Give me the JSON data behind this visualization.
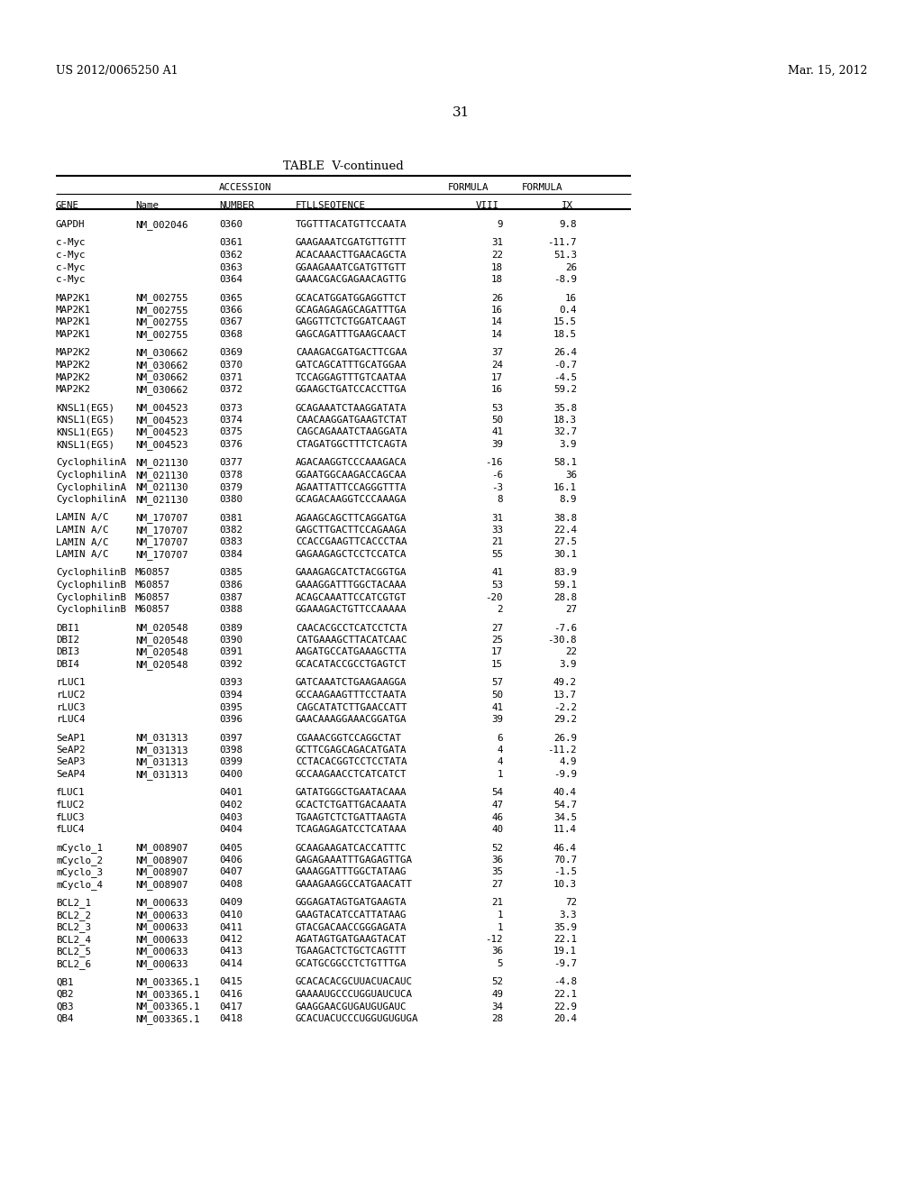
{
  "header_left": "US 2012/0065250 A1",
  "header_right": "Mar. 15, 2012",
  "page_number": "31",
  "table_title": "TABLE  V-continued",
  "rows": [
    [
      "GAPDH",
      "NM_002046",
      "0360",
      "TGGTTTACATGTTCCAATA",
      "9",
      "9.8"
    ],
    [
      "",
      "",
      "",
      "",
      "",
      ""
    ],
    [
      "c-Myc",
      "",
      "0361",
      "GAAGAAATCGATGTTGTTT",
      "31",
      "-11.7"
    ],
    [
      "c-Myc",
      "",
      "0362",
      "ACACAAACTTGAACAGCTA",
      "22",
      "51.3"
    ],
    [
      "c-Myc",
      "",
      "0363",
      "GGAAGAAATCGATGTTGTT",
      "18",
      "26"
    ],
    [
      "c-Myc",
      "",
      "0364",
      "GAAACGACGAGAACAGTTG",
      "18",
      "-8.9"
    ],
    [
      "",
      "",
      "",
      "",
      "",
      ""
    ],
    [
      "MAP2K1",
      "NM_002755",
      "0365",
      "GCACATGGATGGAGGTTCT",
      "26",
      "16"
    ],
    [
      "MAP2K1",
      "NM_002755",
      "0366",
      "GCAGAGAGAGCAGATTTGA",
      "16",
      "0.4"
    ],
    [
      "MAP2K1",
      "NM_002755",
      "0367",
      "GAGGTTCTCTGGATCAAGT",
      "14",
      "15.5"
    ],
    [
      "MAP2K1",
      "NM_002755",
      "0368",
      "GAGCAGATTTGAAGCAACT",
      "14",
      "18.5"
    ],
    [
      "",
      "",
      "",
      "",
      "",
      ""
    ],
    [
      "MAP2K2",
      "NM_030662",
      "0369",
      "CAAAGACGATGACTTCGAA",
      "37",
      "26.4"
    ],
    [
      "MAP2K2",
      "NM_030662",
      "0370",
      "GATCAGCATTTGCATGGAA",
      "24",
      "-0.7"
    ],
    [
      "MAP2K2",
      "NM_030662",
      "0371",
      "TCCAGGAGTTTGTCAATAA",
      "17",
      "-4.5"
    ],
    [
      "MAP2K2",
      "NM_030662",
      "0372",
      "GGAAGCTGATCCACCTTGA",
      "16",
      "59.2"
    ],
    [
      "",
      "",
      "",
      "",
      "",
      ""
    ],
    [
      "KNSL1(EG5)",
      "NM_004523",
      "0373",
      "GCAGAAATCTAAGGATATA",
      "53",
      "35.8"
    ],
    [
      "KNSL1(EG5)",
      "NM_004523",
      "0374",
      "CAACAAGGATGAAGTCTAT",
      "50",
      "18.3"
    ],
    [
      "KNSL1(EG5)",
      "NM_004523",
      "0375",
      "CAGCAGAAATCTAAGGATA",
      "41",
      "32.7"
    ],
    [
      "KNSL1(EG5)",
      "NM_004523",
      "0376",
      "CTAGATGGCTTTCTCAGTA",
      "39",
      "3.9"
    ],
    [
      "",
      "",
      "",
      "",
      "",
      ""
    ],
    [
      "CyclophilinA",
      "NM_021130",
      "0377",
      "AGACAAGGTCCCAAAGACA",
      "-16",
      "58.1"
    ],
    [
      "CyclophilinA",
      "NM_021130",
      "0378",
      "GGAATGGCAAGACCAGCAA",
      "-6",
      "36"
    ],
    [
      "CyclophilinA",
      "NM_021130",
      "0379",
      "AGAATTATTCCAGGGTTTA",
      "-3",
      "16.1"
    ],
    [
      "CyclophilinA",
      "NM_021130",
      "0380",
      "GCAGACAAGGTCCCAAAGA",
      "8",
      "8.9"
    ],
    [
      "",
      "",
      "",
      "",
      "",
      ""
    ],
    [
      "LAMIN A/C",
      "NM_170707",
      "0381",
      "AGAAGCAGCTTCAGGATGA",
      "31",
      "38.8"
    ],
    [
      "LAMIN A/C",
      "NM_170707",
      "0382",
      "GAGCTTGACTTCCAGAAGA",
      "33",
      "22.4"
    ],
    [
      "LAMIN A/C",
      "NM_170707",
      "0383",
      "CCACCGAAGTTCACCCTAA",
      "21",
      "27.5"
    ],
    [
      "LAMIN A/C",
      "NM_170707",
      "0384",
      "GAGAAGAGCTCCTCCATCA",
      "55",
      "30.1"
    ],
    [
      "",
      "",
      "",
      "",
      "",
      ""
    ],
    [
      "CyclophilinB",
      "M60857",
      "0385",
      "GAAAGAGCATCTACGGTGA",
      "41",
      "83.9"
    ],
    [
      "CyclophilinB",
      "M60857",
      "0386",
      "GAAAGGATTTGGCTACAAA",
      "53",
      "59.1"
    ],
    [
      "CyclophilinB",
      "M60857",
      "0387",
      "ACAGCAAATTCCATCGTGT",
      "-20",
      "28.8"
    ],
    [
      "CyclophilinB",
      "M60857",
      "0388",
      "GGAAAGACTGTTCCAAAAA",
      "2",
      "27"
    ],
    [
      "",
      "",
      "",
      "",
      "",
      ""
    ],
    [
      "DBI1",
      "NM_020548",
      "0389",
      "CAACACGCCTCATCCTCTA",
      "27",
      "-7.6"
    ],
    [
      "DBI2",
      "NM_020548",
      "0390",
      "CATGAAAGCTTACATCAAC",
      "25",
      "-30.8"
    ],
    [
      "DBI3",
      "NM_020548",
      "0391",
      "AAGATGCCATGAAAGCTTA",
      "17",
      "22"
    ],
    [
      "DBI4",
      "NM_020548",
      "0392",
      "GCACATACCGCCTGAGTCT",
      "15",
      "3.9"
    ],
    [
      "",
      "",
      "",
      "",
      "",
      ""
    ],
    [
      "rLUC1",
      "",
      "0393",
      "GATCAAATCTGAAGAAGGA",
      "57",
      "49.2"
    ],
    [
      "rLUC2",
      "",
      "0394",
      "GCCAAGAAGTTTCCTAATA",
      "50",
      "13.7"
    ],
    [
      "rLUC3",
      "",
      "0395",
      "CAGCATATCTTGAACCATT",
      "41",
      "-2.2"
    ],
    [
      "rLUC4",
      "",
      "0396",
      "GAACAAAGGAAACGGATGA",
      "39",
      "29.2"
    ],
    [
      "",
      "",
      "",
      "",
      "",
      ""
    ],
    [
      "SeAP1",
      "NM_031313",
      "0397",
      "CGAAACGGTCCAGGCTAT",
      "6",
      "26.9"
    ],
    [
      "SeAP2",
      "NM_031313",
      "0398",
      "GCTTCGAGCAGACATGATA",
      "4",
      "-11.2"
    ],
    [
      "SeAP3",
      "NM_031313",
      "0399",
      "CCTACACGGTCCTCCTATA",
      "4",
      "4.9"
    ],
    [
      "SeAP4",
      "NM_031313",
      "0400",
      "GCCAAGAACCTCATCATCT",
      "1",
      "-9.9"
    ],
    [
      "",
      "",
      "",
      "",
      "",
      ""
    ],
    [
      "fLUC1",
      "",
      "0401",
      "GATATGGGCTGAATACAAA",
      "54",
      "40.4"
    ],
    [
      "fLUC2",
      "",
      "0402",
      "GCACTCTGATTGACAAATA",
      "47",
      "54.7"
    ],
    [
      "fLUC3",
      "",
      "0403",
      "TGAAGTCTCTGATTAAGTA",
      "46",
      "34.5"
    ],
    [
      "fLUC4",
      "",
      "0404",
      "TCAGAGAGATCCTCATAAA",
      "40",
      "11.4"
    ],
    [
      "",
      "",
      "",
      "",
      "",
      ""
    ],
    [
      "mCyclo_1",
      "NM_008907",
      "0405",
      "GCAAGAAGATCACCATTTC",
      "52",
      "46.4"
    ],
    [
      "mCyclo_2",
      "NM_008907",
      "0406",
      "GAGAGAAATTTGAGAGTTGA",
      "36",
      "70.7"
    ],
    [
      "mCyclo_3",
      "NM_008907",
      "0407",
      "GAAAGGATTTGGCTATAAG",
      "35",
      "-1.5"
    ],
    [
      "mCyclo_4",
      "NM_008907",
      "0408",
      "GAAAGAAGGCCATGAACATT",
      "27",
      "10.3"
    ],
    [
      "",
      "",
      "",
      "",
      "",
      ""
    ],
    [
      "BCL2_1",
      "NM_000633",
      "0409",
      "GGGAGATAGTGATGAAGTA",
      "21",
      "72"
    ],
    [
      "BCL2_2",
      "NM_000633",
      "0410",
      "GAAGTACATCCATTATAAG",
      "1",
      "3.3"
    ],
    [
      "BCL2_3",
      "NM_000633",
      "0411",
      "GTACGACAACCGGGAGATA",
      "1",
      "35.9"
    ],
    [
      "BCL2_4",
      "NM_000633",
      "0412",
      "AGATAGTGATGAAGTACAT",
      "-12",
      "22.1"
    ],
    [
      "BCL2_5",
      "NM_000633",
      "0413",
      "TGAAGACTCTGCTCAGTTT",
      "36",
      "19.1"
    ],
    [
      "BCL2_6",
      "NM_000633",
      "0414",
      "GCATGCGGCCTCTGTTTGA",
      "5",
      "-9.7"
    ],
    [
      "",
      "",
      "",
      "",
      "",
      ""
    ],
    [
      "QB1",
      "NM_003365.1",
      "0415",
      "GCACACACGCUUACUACAUC",
      "52",
      "-4.8"
    ],
    [
      "QB2",
      "NM_003365.1",
      "0416",
      "GAAAAUGCCCUGGUAUCUCA",
      "49",
      "22.1"
    ],
    [
      "QB3",
      "NM_003365.1",
      "0417",
      "GAAGGAACGUGAUGUGAUC",
      "34",
      "22.9"
    ],
    [
      "QB4",
      "NM_003365.1",
      "0418",
      "GCACUACUCCCUGGUGUGUGA",
      "28",
      "20.4"
    ]
  ],
  "bg_color": "#ffffff",
  "text_color": "#000000"
}
